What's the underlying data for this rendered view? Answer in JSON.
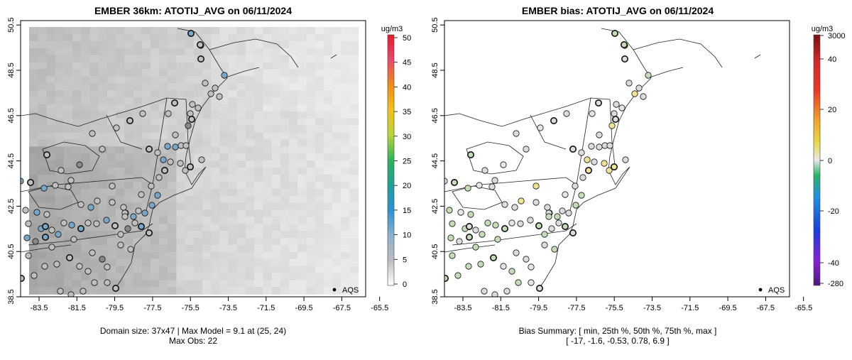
{
  "left_panel": {
    "title": "EMBER 36km: ATOTIJ_AVG on 06/11/2024",
    "footer_line1": "Domain size: 37x47 | Max Model = 9.1 at (25, 24)",
    "footer_line2": "Max Obs: 22",
    "legend_label": "AQS",
    "colorbar": {
      "unit": "ug/m3",
      "ticks": [
        "0",
        "5",
        "10",
        "15",
        "20",
        "25",
        "30",
        "35",
        "40",
        "45",
        "50"
      ]
    }
  },
  "right_panel": {
    "title": "EMBER bias: ATOTIJ_AVG on 06/11/2024",
    "footer_line1": "Bias Summary: [ min, 25th %, 50th %, 75th %, max ]",
    "footer_line2": "[ -17,   -1.6,   -0.53,   0.78,   6.9 ]",
    "legend_label": "AQS",
    "colorbar": {
      "unit": "ug/m3",
      "ticks": [
        "3000",
        "40",
        "20",
        "0",
        "-20",
        "-40",
        "-280"
      ]
    }
  },
  "axes": {
    "x_ticks": [
      "-83.5",
      "-81.5",
      "-79.5",
      "-77.5",
      "-75.5",
      "-73.5",
      "-71.5",
      "-69.5",
      "-67.5",
      "-65.5"
    ],
    "y_ticks": [
      "38.5",
      "40.5",
      "42.5",
      "44.5",
      "46.5",
      "48.5",
      "50.5"
    ]
  },
  "colors": {
    "model_gray": "#d4d4d4",
    "obs_blue": "#6f9fc4",
    "bias_green": "#c8dcc0",
    "bias_yellow": "#f0e49a"
  }
}
